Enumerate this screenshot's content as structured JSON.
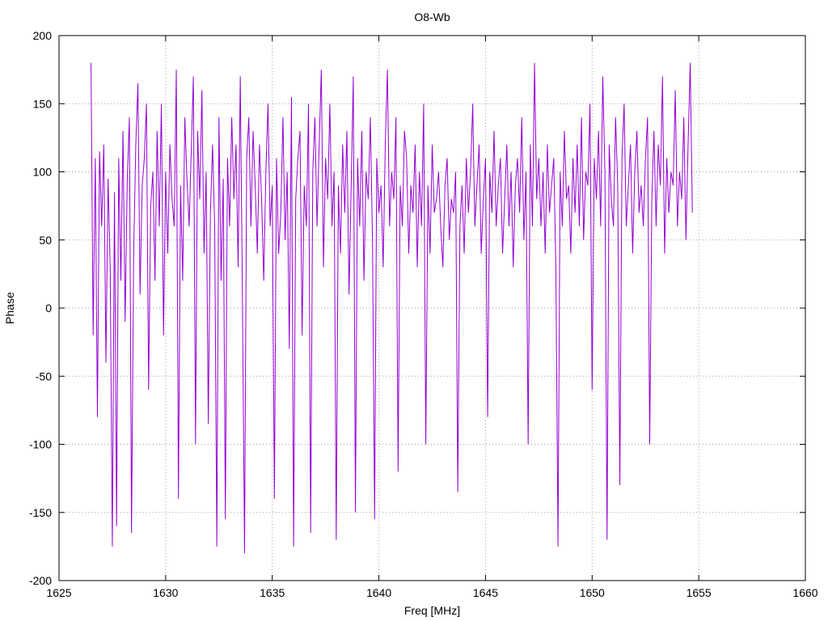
{
  "chart_data": {
    "type": "line",
    "title": "O8-Wb",
    "xlabel": "Freq [MHz]",
    "ylabel": "Phase",
    "xlim": [
      1625,
      1660
    ],
    "ylim": [
      -200,
      200
    ],
    "xticks": [
      1625,
      1630,
      1635,
      1640,
      1645,
      1650,
      1655,
      1660
    ],
    "yticks": [
      -200,
      -150,
      -100,
      -50,
      0,
      50,
      100,
      150,
      200
    ],
    "grid": true,
    "series": [
      {
        "color": "#9400d3",
        "x_start": 1626.5,
        "x_step": 0.1,
        "values": [
          180,
          -20,
          110,
          -80,
          115,
          60,
          120,
          -40,
          95,
          30,
          -175,
          85,
          -160,
          110,
          20,
          130,
          -10,
          95,
          140,
          -165,
          40,
          120,
          165,
          10,
          90,
          110,
          150,
          -60,
          75,
          100,
          20,
          130,
          60,
          150,
          -20,
          100,
          40,
          120,
          80,
          60,
          175,
          -140,
          90,
          20,
          140,
          95,
          60,
          115,
          170,
          -100,
          130,
          80,
          160,
          40,
          100,
          -85,
          70,
          120,
          60,
          -175,
          140,
          20,
          95,
          -155,
          110,
          60,
          140,
          80,
          120,
          30,
          170,
          10,
          -180,
          110,
          140,
          60,
          130,
          90,
          40,
          120,
          80,
          20,
          100,
          150,
          60,
          90,
          -140,
          110,
          40,
          70,
          140,
          50,
          100,
          -30,
          155,
          -175,
          80,
          110,
          130,
          -20,
          90,
          60,
          150,
          -165,
          100,
          140,
          60,
          120,
          175,
          30,
          110,
          80,
          150,
          60,
          100,
          -170,
          90,
          40,
          120,
          70,
          130,
          10,
          90,
          170,
          -150,
          110,
          60,
          130,
          20,
          100,
          80,
          140,
          50,
          -155,
          110,
          70,
          90,
          30,
          120,
          175,
          60,
          100,
          80,
          140,
          -120,
          90,
          60,
          130,
          110,
          40,
          90,
          70,
          120,
          30,
          100,
          60,
          150,
          -100,
          90,
          40,
          120,
          70,
          80,
          100,
          60,
          30,
          90,
          110,
          50,
          80,
          70,
          100,
          -135,
          60,
          90,
          40,
          110,
          70,
          100,
          150,
          60,
          90,
          120,
          40,
          80,
          110,
          -80,
          100,
          70,
          130,
          60,
          90,
          110,
          40,
          80,
          120,
          60,
          100,
          30,
          90,
          110,
          70,
          140,
          50,
          100,
          -100,
          120,
          60,
          180,
          80,
          110,
          60,
          100,
          40,
          120,
          70,
          90,
          110,
          30,
          -175,
          100,
          60,
          130,
          80,
          90,
          40,
          110,
          70,
          120,
          60,
          140,
          50,
          100,
          90,
          150,
          -60,
          110,
          80,
          130,
          60,
          170,
          100,
          -170,
          120,
          80,
          60,
          140,
          90,
          -130,
          110,
          150,
          60,
          90,
          120,
          40,
          100,
          130,
          70,
          90,
          60,
          110,
          140,
          -100,
          80,
          130,
          60,
          120,
          90,
          170,
          40,
          110,
          70,
          100,
          90,
          160,
          60,
          100,
          80,
          140,
          50,
          120,
          180,
          70
        ]
      }
    ]
  }
}
